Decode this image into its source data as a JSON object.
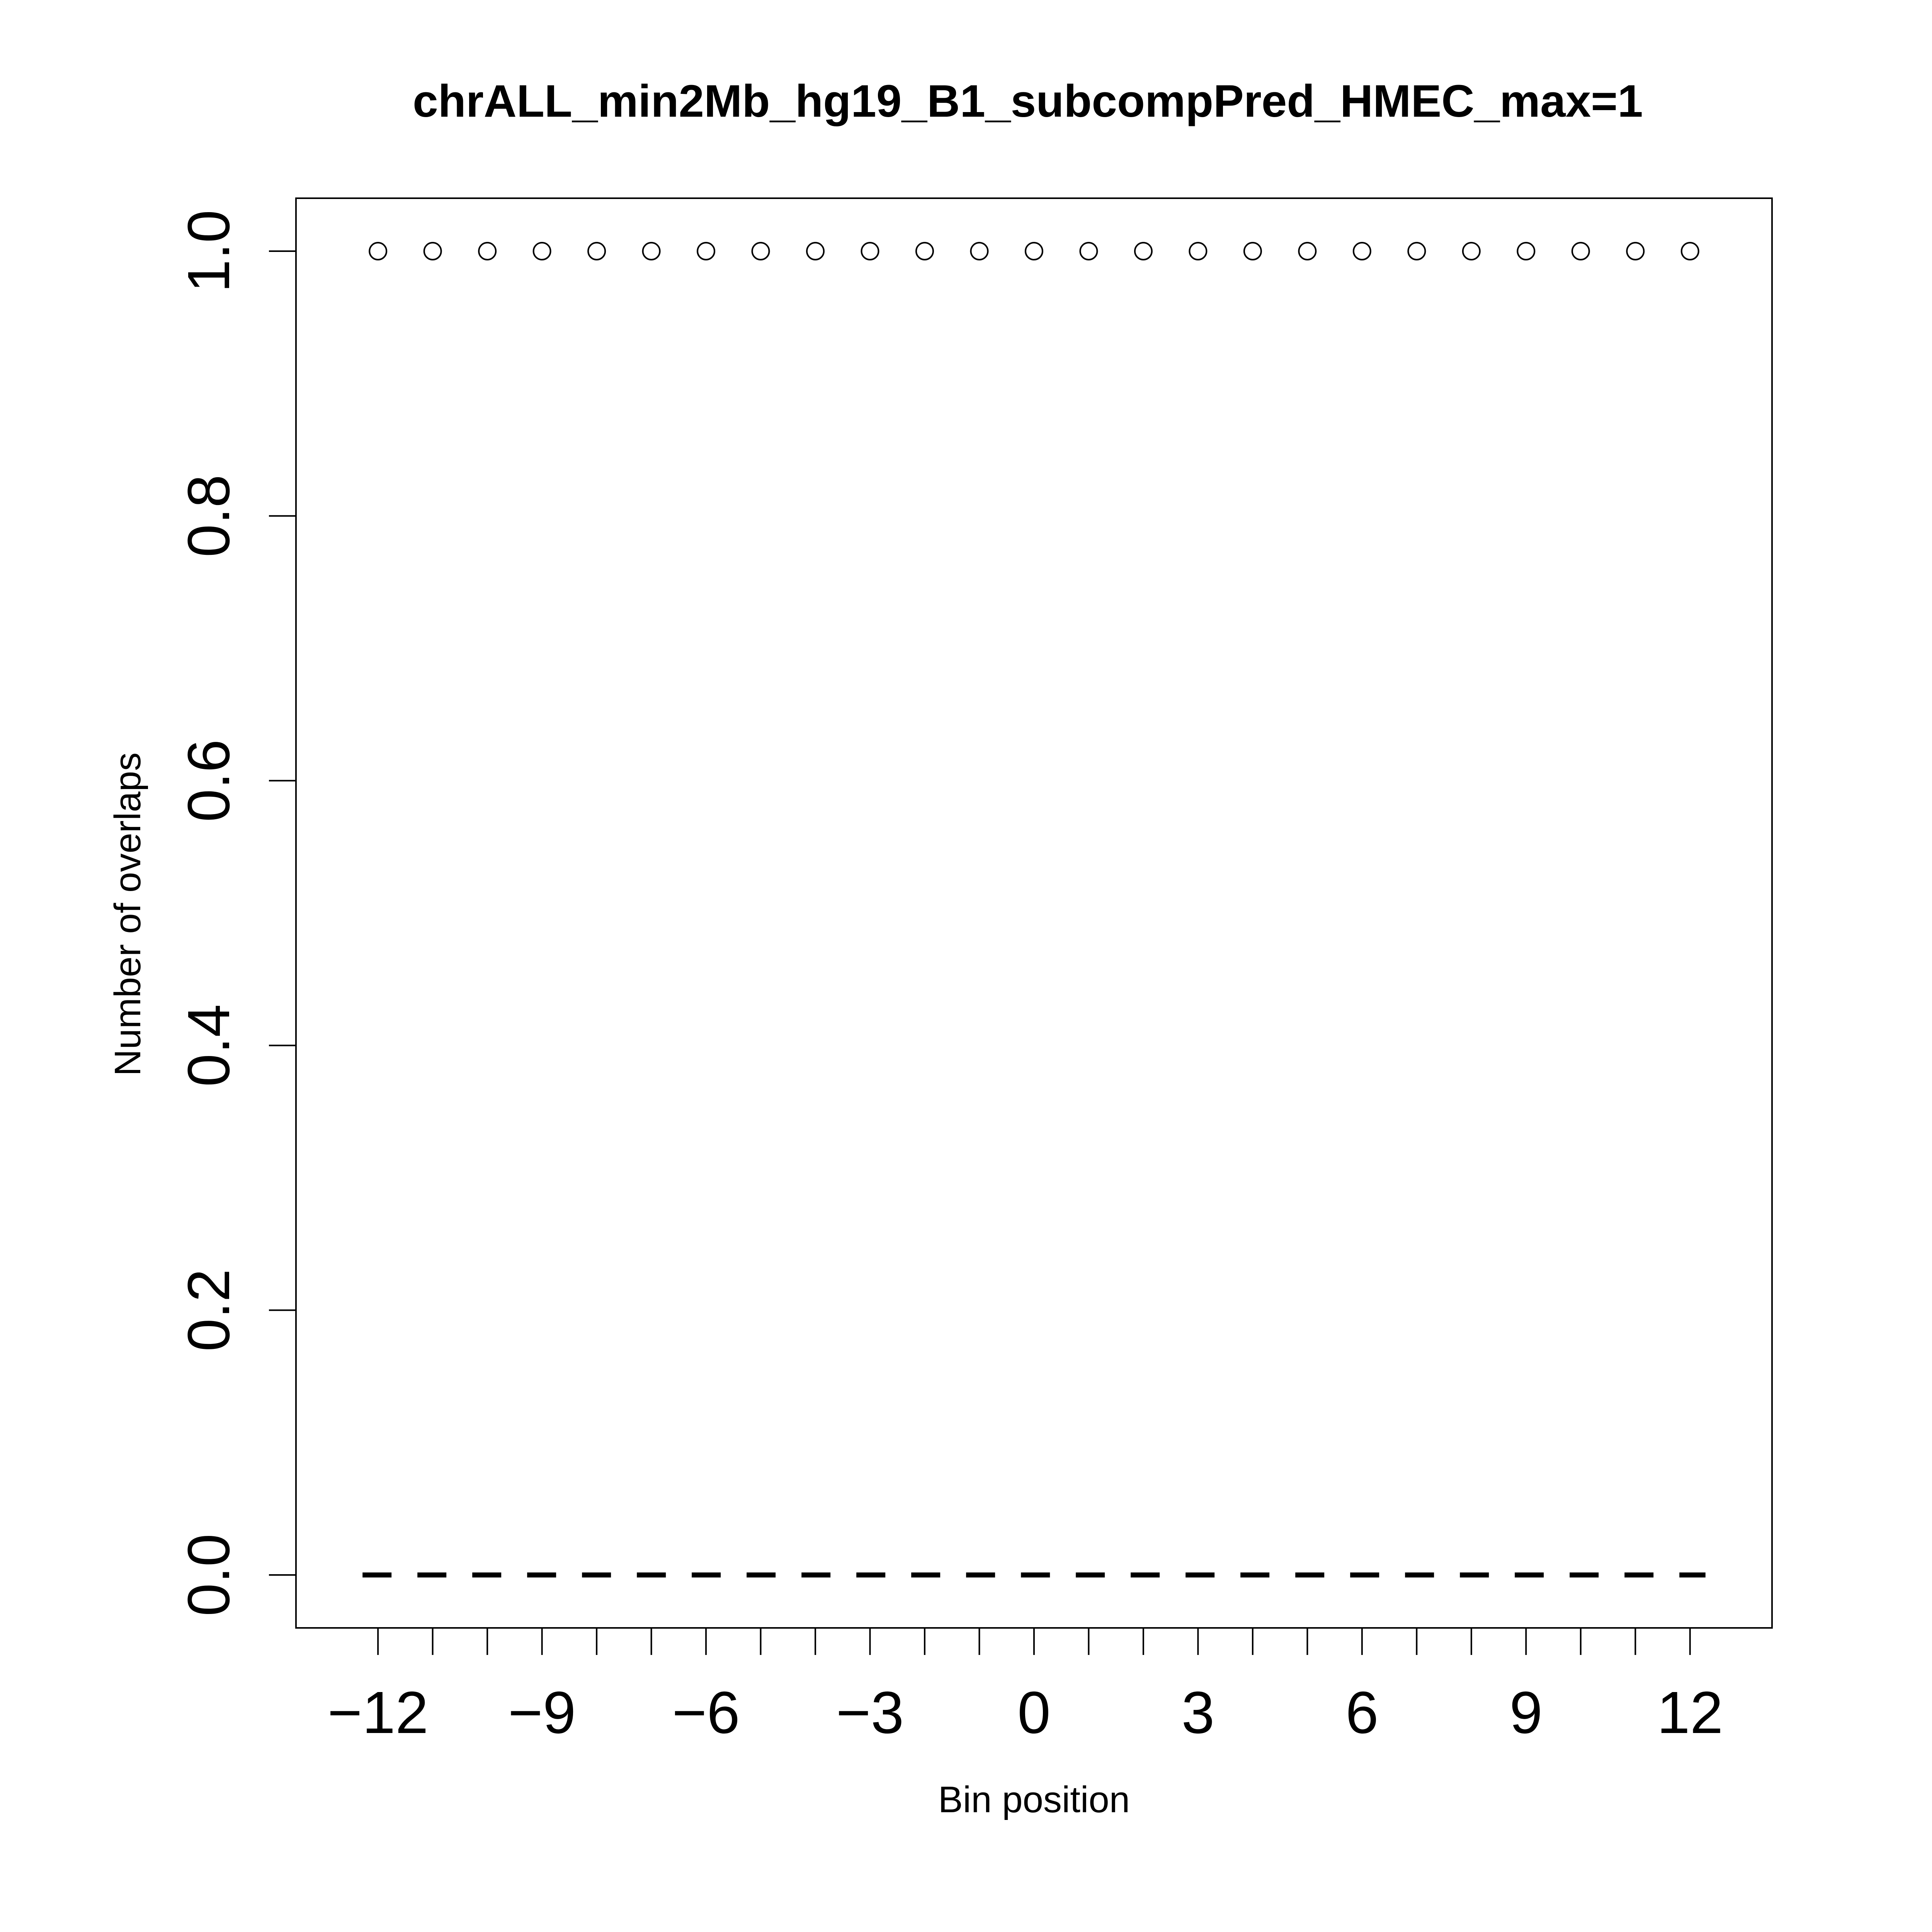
{
  "chart_data": {
    "type": "scatter",
    "title": "chrALL_min2Mb_hg19_B1_subcompPred_HMEC_max=1",
    "xlabel": "Bin position",
    "ylabel": "Number of overlaps",
    "xlim": [
      -13.5,
      13.5
    ],
    "ylim": [
      -0.04,
      1.04
    ],
    "x_ticks": [
      -12,
      -9,
      -6,
      -3,
      0,
      3,
      6,
      9,
      12
    ],
    "x_tick_labels": [
      "−12",
      "−9",
      "−6",
      "−3",
      "0",
      "3",
      "6",
      "9",
      "12"
    ],
    "x_minor_ticks": [
      -12,
      -11,
      -10,
      -9,
      -8,
      -7,
      -6,
      -5,
      -4,
      -3,
      -2,
      -1,
      0,
      1,
      2,
      3,
      4,
      5,
      6,
      7,
      8,
      9,
      10,
      11,
      12
    ],
    "y_ticks": [
      0.0,
      0.2,
      0.4,
      0.6,
      0.8,
      1.0
    ],
    "y_tick_labels": [
      "0.0",
      "0.2",
      "0.4",
      "0.6",
      "0.8",
      "1.0"
    ],
    "grid": false,
    "series": [
      {
        "marker": "open-circle",
        "x": [
          -12,
          -11,
          -10,
          -9,
          -8,
          -7,
          -6,
          -5,
          -4,
          -3,
          -2,
          -1,
          0,
          1,
          2,
          3,
          4,
          5,
          6,
          7,
          8,
          9,
          10,
          11,
          12
        ],
        "y": [
          1,
          1,
          1,
          1,
          1,
          1,
          1,
          1,
          1,
          1,
          1,
          1,
          1,
          1,
          1,
          1,
          1,
          1,
          1,
          1,
          1,
          1,
          1,
          1,
          1
        ]
      }
    ],
    "reference_lines": [
      {
        "style": "dashed",
        "y": 0,
        "x_from": -12,
        "x_to": 12
      }
    ]
  }
}
